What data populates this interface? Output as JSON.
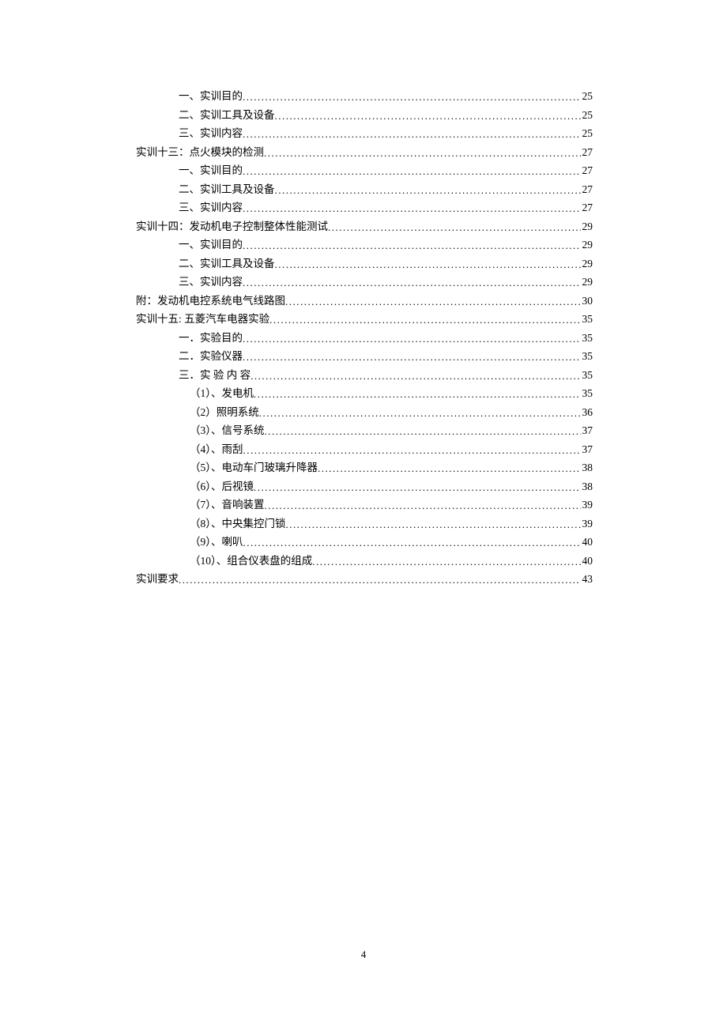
{
  "toc": {
    "entries": [
      {
        "label": "一、实训目的",
        "page": "25",
        "indent": 1
      },
      {
        "label": "二、实训工具及设备",
        "page": "25",
        "indent": 1
      },
      {
        "label": "三、实训内容",
        "page": "25",
        "indent": 1
      },
      {
        "label": "实训十三：点火模块的检测",
        "page": "27",
        "indent": 0
      },
      {
        "label": "一、实训目的",
        "page": "27",
        "indent": 1
      },
      {
        "label": "二、实训工具及设备",
        "page": "27",
        "indent": 1
      },
      {
        "label": "三、实训内容",
        "page": "27",
        "indent": 1
      },
      {
        "label": "实训十四：发动机电子控制整体性能测试",
        "page": "29",
        "indent": 0
      },
      {
        "label": "一、实训目的",
        "page": "29",
        "indent": 1
      },
      {
        "label": "二、实训工具及设备",
        "page": "29",
        "indent": 1
      },
      {
        "label": "三、实训内容",
        "page": "29",
        "indent": 1
      },
      {
        "label": "附：发动机电控系统电气线路图",
        "page": "30",
        "indent": 0
      },
      {
        "label": "实训十五:  五菱汽车电器实验 ",
        "page": "35",
        "indent": 0
      },
      {
        "label": "一．实验目的",
        "page": "35",
        "indent": 1
      },
      {
        "label": "二．实验仪器",
        "page": "35",
        "indent": 1
      },
      {
        "label": "三．实 验 内 容",
        "page": "35",
        "indent": 1
      },
      {
        "label": "（1）、发电机",
        "page": "35",
        "indent": 2
      },
      {
        "label": "（2）照明系统 ",
        "page": "36",
        "indent": 2
      },
      {
        "label": "（3）、信号系统 ",
        "page": "37",
        "indent": 2
      },
      {
        "label": "（4）、雨刮 ",
        "page": "37",
        "indent": 2
      },
      {
        "label": "（5）、电动车门玻璃升降器 ",
        "page": "38",
        "indent": 2
      },
      {
        "label": "（6）、后视镜 ",
        "page": "38",
        "indent": 2
      },
      {
        "label": "（7）、音响装置 ",
        "page": "39",
        "indent": 2
      },
      {
        "label": "（8）、中央集控门锁 ",
        "page": "39",
        "indent": 2
      },
      {
        "label": "（9）、喇叭 ",
        "page": "40",
        "indent": 2
      },
      {
        "label": "（10）、组合仪表盘的组成 ",
        "page": "40",
        "indent": 2
      },
      {
        "label": "实训要求",
        "page": "43",
        "indent": 0
      }
    ]
  },
  "page_number": "4"
}
